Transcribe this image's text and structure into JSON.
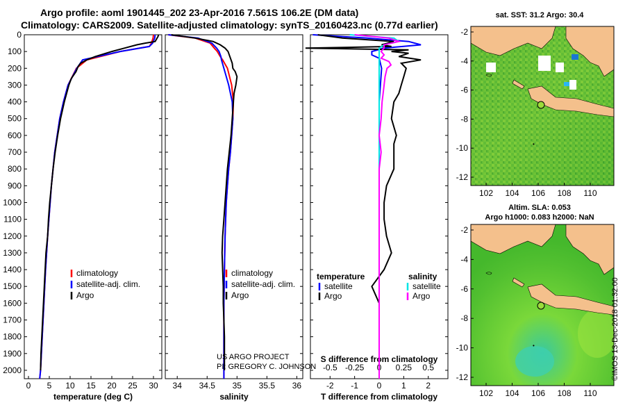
{
  "header": {
    "title_line1": "Argo profile: aoml 1901445_202 23-Apr-2016 7.561S 106.2E (DM data)",
    "title_line2": "Climatology: CARS2009. Satellite-adjusted climatology: synTS_20160423.nc (0.77d earlier)"
  },
  "colors": {
    "climatology": "#ff0000",
    "satellite_adj": "#0000ff",
    "argo": "#000000",
    "sat_temperature": "#0000ff",
    "sat_salinity": "#00e5e5",
    "argo_salinity": "#ff00ff",
    "land": "#f4c08c"
  },
  "chart_data": [
    {
      "type": "line",
      "panel": "temperature",
      "xlabel": "temperature (deg C)",
      "xlim": [
        -1,
        32
      ],
      "xticks": [
        0,
        5,
        10,
        15,
        20,
        25,
        30
      ],
      "ylim": [
        2050,
        0
      ],
      "yticks": [
        0,
        100,
        200,
        300,
        400,
        500,
        600,
        700,
        800,
        900,
        1000,
        1100,
        1200,
        1300,
        1400,
        1500,
        1600,
        1700,
        1800,
        1900,
        2000
      ],
      "legend": [
        "climatology",
        "satellite-adj. clim.",
        "Argo"
      ],
      "series": [
        {
          "name": "climatology",
          "depth": [
            0,
            20,
            50,
            70,
            100,
            150,
            200,
            300,
            400,
            500,
            600,
            700,
            800,
            900,
            1000,
            1200,
            1400,
            1600,
            1800,
            2000,
            2050
          ],
          "values": [
            30.0,
            29.9,
            29.5,
            29.0,
            22.0,
            14.0,
            11.5,
            9.5,
            8.4,
            7.5,
            6.9,
            6.3,
            5.9,
            5.5,
            5.2,
            4.6,
            4.1,
            3.7,
            3.3,
            2.9,
            2.7
          ]
        },
        {
          "name": "satellite-adj. clim.",
          "depth": [
            0,
            20,
            50,
            70,
            100,
            150,
            200,
            300,
            400,
            500,
            600,
            700,
            800,
            900,
            1000,
            1200,
            1400,
            1600,
            1800,
            2000,
            2050
          ],
          "values": [
            30.4,
            30.3,
            29.8,
            29.0,
            22.0,
            13.0,
            11.6,
            9.5,
            8.4,
            7.5,
            6.9,
            6.3,
            5.9,
            5.5,
            5.2,
            4.6,
            4.1,
            3.7,
            3.3,
            2.9,
            2.7
          ]
        },
        {
          "name": "Argo",
          "depth": [
            0,
            10,
            40,
            50,
            60,
            80,
            100,
            130,
            150,
            170,
            190,
            220,
            260,
            300,
            400,
            500,
            600,
            700,
            800,
            900,
            1000,
            1100,
            1200,
            1300,
            1400,
            1500,
            1600,
            1700,
            1800,
            1900,
            2000
          ],
          "values": [
            31.2,
            31.1,
            30.4,
            28.0,
            26.0,
            23.0,
            20.0,
            16.0,
            14.0,
            12.5,
            11.9,
            11.4,
            10.3,
            9.7,
            8.6,
            7.7,
            7.0,
            6.4,
            5.9,
            5.5,
            5.1,
            4.8,
            4.6,
            4.2,
            4.0,
            3.8,
            3.6,
            3.4,
            3.2,
            3.0,
            2.9
          ]
        }
      ]
    },
    {
      "type": "line",
      "panel": "salinity",
      "xlabel": "salinity",
      "xlim": [
        33.8,
        36.1
      ],
      "xticks": [
        34,
        34.5,
        35,
        35.5,
        36
      ],
      "xticklabels": [
        "34",
        "34.5",
        "35",
        "35.5",
        "36"
      ],
      "ylim": [
        2050,
        0
      ],
      "legend": [
        "climatology",
        "satellite-adj. clim.",
        "Argo"
      ],
      "series": [
        {
          "name": "climatology",
          "depth": [
            0,
            20,
            50,
            80,
            100,
            130,
            150,
            200,
            300,
            400,
            500,
            600,
            700,
            800,
            900,
            1000,
            1200,
            1400,
            1600,
            1800,
            2000,
            2050
          ],
          "values": [
            33.85,
            34.3,
            34.55,
            34.62,
            34.67,
            34.72,
            34.76,
            34.84,
            34.91,
            34.94,
            34.93,
            34.91,
            34.89,
            34.86,
            34.84,
            34.82,
            34.8,
            34.79,
            34.78,
            34.78,
            34.78,
            34.78
          ]
        },
        {
          "name": "satellite-adj. clim.",
          "depth": [
            0,
            20,
            50,
            80,
            100,
            130,
            150,
            200,
            300,
            400,
            500,
            600,
            700,
            800,
            900,
            1000,
            1200,
            1400,
            1600,
            1800,
            2000,
            2050
          ],
          "values": [
            33.85,
            34.35,
            34.58,
            34.66,
            34.7,
            34.73,
            34.74,
            34.78,
            34.86,
            34.92,
            34.93,
            34.91,
            34.89,
            34.86,
            34.84,
            34.82,
            34.8,
            34.79,
            34.78,
            34.78,
            34.78,
            34.78
          ]
        },
        {
          "name": "Argo",
          "depth": [
            0,
            20,
            40,
            60,
            80,
            100,
            130,
            150,
            170,
            200,
            220,
            250,
            300,
            350,
            400,
            500,
            600,
            700,
            800,
            900,
            1000,
            1100,
            1200,
            1300,
            1400,
            1500,
            1600,
            1700,
            1800,
            1900,
            2000
          ],
          "values": [
            33.9,
            34.3,
            34.6,
            34.72,
            34.8,
            34.85,
            34.88,
            34.9,
            34.92,
            34.93,
            34.97,
            35.0,
            34.98,
            34.95,
            34.94,
            34.92,
            34.9,
            34.87,
            34.84,
            34.82,
            34.8,
            34.78,
            34.76,
            34.75,
            34.76,
            34.77,
            34.77,
            34.78,
            34.79,
            34.79,
            34.79
          ]
        }
      ]
    },
    {
      "type": "line",
      "panel": "difference",
      "xlabel": "T difference from climatology",
      "xlabel_top": "S difference from climatology",
      "xlim": [
        -2.8,
        2.8
      ],
      "xticks": [
        -2,
        -1,
        0,
        1,
        2
      ],
      "xticklabels_top": [
        "-0.5",
        "-0.25",
        "0",
        "0.25",
        "0.5"
      ],
      "ylim": [
        2050,
        0
      ],
      "legend_temperature_title": "temperature",
      "legend_salinity_title": "salinity",
      "legend_temperature": [
        "satellite",
        "Argo"
      ],
      "legend_salinity": [
        "satellite",
        "Argo"
      ],
      "series": [
        {
          "name": "temperature satellite",
          "depth": [
            0,
            20,
            40,
            60,
            80,
            100,
            120,
            140,
            200,
            300,
            400,
            500,
            600,
            800,
            1000,
            1200,
            1500,
            1800,
            2050
          ],
          "values": [
            -2.7,
            -0.5,
            1.2,
            1.7,
            0.2,
            -0.3,
            -0.3,
            0.0,
            0.1,
            0.05,
            0.0,
            0.0,
            0.0,
            0.0,
            0.0,
            0.0,
            0.0,
            0.0,
            0.0
          ]
        },
        {
          "name": "temperature Argo",
          "depth": [
            0,
            20,
            40,
            60,
            70,
            80,
            90,
            100,
            110,
            130,
            150,
            170,
            200,
            250,
            300,
            350,
            400,
            500,
            600,
            650,
            700,
            800,
            900,
            1000,
            1100,
            1200,
            1300,
            1400,
            1500,
            1600,
            1800,
            2050
          ],
          "values": [
            -2.5,
            -1.5,
            0.6,
            0.1,
            0.5,
            -3.0,
            1.2,
            0.5,
            1.2,
            0.8,
            1.7,
            0.9,
            1.1,
            1.0,
            0.9,
            0.8,
            0.6,
            0.5,
            0.7,
            0.6,
            0.6,
            0.6,
            0.3,
            0.2,
            0.2,
            0.3,
            0.5,
            0.2,
            -0.3,
            0.0,
            0.0,
            0.0
          ]
        },
        {
          "name": "salinity satellite",
          "depth": [
            0,
            20,
            40,
            60,
            80,
            100,
            130,
            150,
            200,
            250,
            300,
            400,
            600,
            800,
            1000,
            1200,
            1500,
            1800,
            2050
          ],
          "values": [
            -0.3,
            0.15,
            0.2,
            0.05,
            0.0,
            0.0,
            0.0,
            0.0,
            0.0,
            0.0,
            0.0,
            0.0,
            0.0,
            0.0,
            0.0,
            0.0,
            0.0,
            0.0,
            0.0
          ]
        },
        {
          "name": "salinity Argo",
          "depth": [
            0,
            20,
            40,
            60,
            80,
            100,
            120,
            140,
            160,
            180,
            200,
            250,
            300,
            350,
            400,
            500,
            600,
            700,
            800,
            1000,
            1200,
            1400,
            1600,
            1800,
            2050
          ],
          "values": [
            -0.25,
            0.1,
            0.2,
            0.05,
            0.05,
            0.02,
            0.05,
            0.02,
            0.1,
            0.12,
            0.08,
            0.06,
            0.05,
            0.04,
            0.03,
            0.02,
            0.0,
            0.02,
            0.0,
            0.0,
            0.0,
            0.0,
            0.0,
            0.0,
            0.0
          ]
        }
      ]
    }
  ],
  "maps": {
    "top": {
      "title": "sat. SST: 31.2 Argo: 30.4",
      "xticks": [
        "102",
        "104",
        "106",
        "108",
        "110"
      ],
      "yticks": [
        "-2",
        "-4",
        "-6",
        "-8",
        "-10",
        "-12"
      ],
      "marker": {
        "lon": 106.2,
        "lat": -7.561
      }
    },
    "bottom": {
      "title_line1": "Altim. SLA: 0.053",
      "title_line2": "Argo h1000: 0.083 h2000: NaN",
      "xticks": [
        "102",
        "104",
        "106",
        "108",
        "110"
      ],
      "yticks": [
        "-2",
        "-4",
        "-6",
        "-8",
        "-10",
        "-12"
      ],
      "marker": {
        "lon": 106.2,
        "lat": -7.561
      }
    }
  },
  "credits": {
    "line1": "US ARGO PROJECT",
    "line2": "PI: GREGORY C. JOHNSON"
  },
  "footer": {
    "imos_label": "©IMOS 13-Dec-2018 01:32:00"
  }
}
